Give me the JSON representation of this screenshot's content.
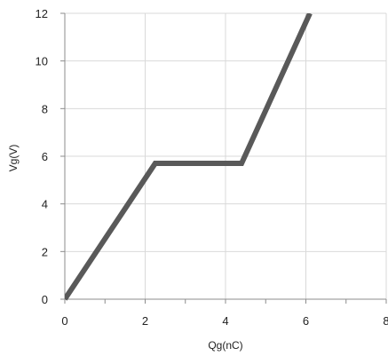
{
  "chart_data": {
    "type": "line",
    "xlabel": "Qg(nC)",
    "ylabel": "Vg(V)",
    "xlim": [
      0,
      8
    ],
    "ylim": [
      0,
      12
    ],
    "x_ticks": [
      0,
      2,
      4,
      6,
      8
    ],
    "y_ticks": [
      0,
      2,
      4,
      6,
      8,
      10,
      12
    ],
    "x_tick_labels": [
      "0",
      "2",
      "4",
      "6",
      "8"
    ],
    "y_tick_labels": [
      "0",
      "2",
      "4",
      "6",
      "8",
      "10",
      "12"
    ],
    "grid": true,
    "series": [
      {
        "x": [
          0,
          2.25,
          4.4,
          6.1
        ],
        "y": [
          0,
          5.7,
          5.7,
          12
        ],
        "color": "#595959"
      }
    ]
  }
}
